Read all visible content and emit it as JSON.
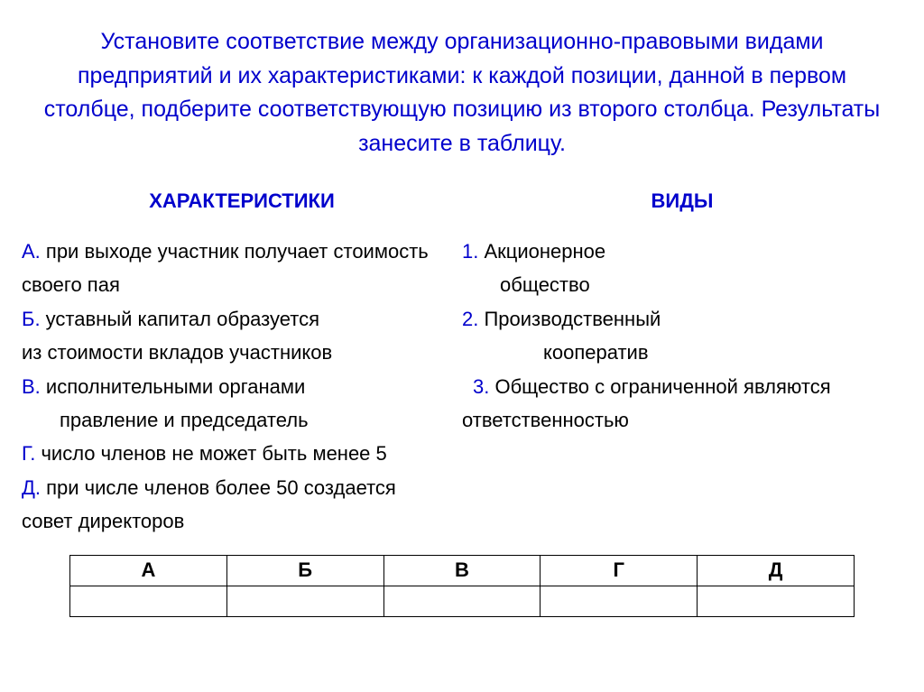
{
  "title": "Установите соответствие между организационно-правовыми видами предприятий и их характеристиками: к каждой позиции, данной в первом столбце, подберите соответствующую позицию из второго столбца. Результаты занесите в таблицу.",
  "headers": {
    "left": "ХАРАКТЕРИСТИКИ",
    "right": "ВИДЫ"
  },
  "rows": [
    {
      "l_letter": "А.",
      "l_text": " при выходе участник получает стоимость",
      "r_letter": "1.",
      "r_text": " Акционерное"
    },
    {
      "l_letter": "",
      "l_text": "своего пая",
      "r_letter": "",
      "r_text": "общество",
      "r_indent": "indent1"
    },
    {
      "l_letter": "Б.",
      "l_text": " уставный капитал образуется",
      "r_letter": "2.",
      "r_text": " Производственный"
    },
    {
      "l_letter": "",
      "l_text": "из стоимости вкладов участников",
      "r_letter": "",
      "r_text": "кооператив",
      "r_indent": "indent2"
    },
    {
      "l_letter": "В.",
      "l_text": " исполнительными органами",
      "r_letter": "3.",
      "r_text": " Общество с ограниченной являются",
      "r_pad": "12px"
    },
    {
      "l_letter": "",
      "l_text": "правление и председатель",
      "l_indent": "indent1",
      "r_letter": "",
      "r_text": "ответственностью"
    },
    {
      "l_letter": "Г.",
      "l_text": " число членов не может быть менее 5",
      "r_letter": "",
      "r_text": ""
    },
    {
      "l_letter": "Д.",
      "l_text": " при числе членов более 50 создается",
      "r_letter": "",
      "r_text": ""
    },
    {
      "l_letter": "",
      "l_text": " совет директоров",
      "r_letter": "",
      "r_text": ""
    }
  ],
  "table": {
    "headers": [
      "А",
      "Б",
      "В",
      "Г",
      "Д"
    ],
    "cells": [
      "",
      "",
      "",
      "",
      ""
    ]
  }
}
